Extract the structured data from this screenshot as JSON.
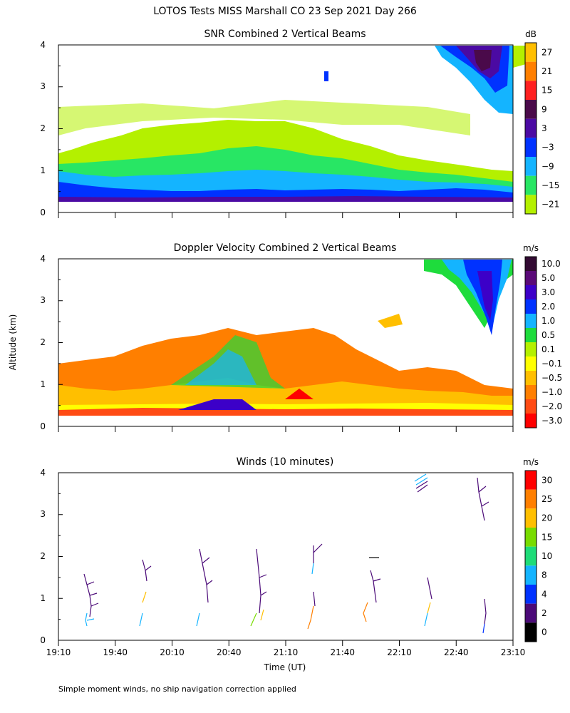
{
  "main_title": "LOTOS Tests MISS Marshall CO  23 Sep 2021 Day 266",
  "y_axis_label": "Altitude (km)",
  "x_axis_label": "Time (UT)",
  "footer_note": "Simple moment winds, no ship navigation correction applied",
  "chart_data": [
    {
      "type": "heatmap",
      "title": "SNR Combined 2 Vertical Beams",
      "ylim": [
        0,
        4
      ],
      "yticks": [
        "0",
        "1",
        "2",
        "3",
        "4"
      ],
      "xlim_minutes": [
        0,
        240
      ],
      "colorbar": {
        "unit": "dB",
        "labels": [
          "27",
          "21",
          "15",
          "9",
          "3",
          "−3",
          "−9",
          "−15",
          "−21"
        ],
        "colors": [
          "#ffbf00",
          "#ff7f00",
          "#ff2020",
          "#4a0a4a",
          "#4b0aa3",
          "#0032ff",
          "#14b4ff",
          "#28e664",
          "#b4f000"
        ]
      }
    },
    {
      "type": "heatmap",
      "title": "Doppler Velocity Combined 2 Vertical Beams",
      "ylim": [
        0,
        4
      ],
      "yticks": [
        "0",
        "1",
        "2",
        "3",
        "4"
      ],
      "xlim_minutes": [
        0,
        240
      ],
      "colorbar": {
        "unit": "m/s",
        "labels": [
          "10.0",
          "5.0",
          "3.0",
          "2.0",
          "1.0",
          "0.5",
          "0.1",
          "−0.1",
          "−0.5",
          "−1.0",
          "−2.0",
          "−3.0"
        ],
        "colors": [
          "#320a32",
          "#5a0a78",
          "#3c00c8",
          "#0032ff",
          "#14b4ff",
          "#1edc3c",
          "#b4f000",
          "#ffff00",
          "#ffbf00",
          "#ff7f00",
          "#ff4b14",
          "#ff0000"
        ]
      }
    },
    {
      "type": "scatter",
      "title": "Winds (10 minutes)",
      "ylim": [
        0,
        4
      ],
      "yticks": [
        "0",
        "1",
        "2",
        "3",
        "4"
      ],
      "x_tick_labels": [
        "19:10",
        "19:40",
        "20:10",
        "20:40",
        "21:10",
        "21:40",
        "22:10",
        "22:40",
        "23:10"
      ],
      "colorbar": {
        "unit": "m/s",
        "labels": [
          "30",
          "25",
          "20",
          "15",
          "10",
          "8",
          "4",
          "2",
          "0"
        ],
        "colors": [
          "#ff0000",
          "#ff7f00",
          "#ffbf00",
          "#78dc00",
          "#1edc78",
          "#14b4ff",
          "#0032ff",
          "#4b0a78",
          "#000000"
        ]
      }
    }
  ]
}
